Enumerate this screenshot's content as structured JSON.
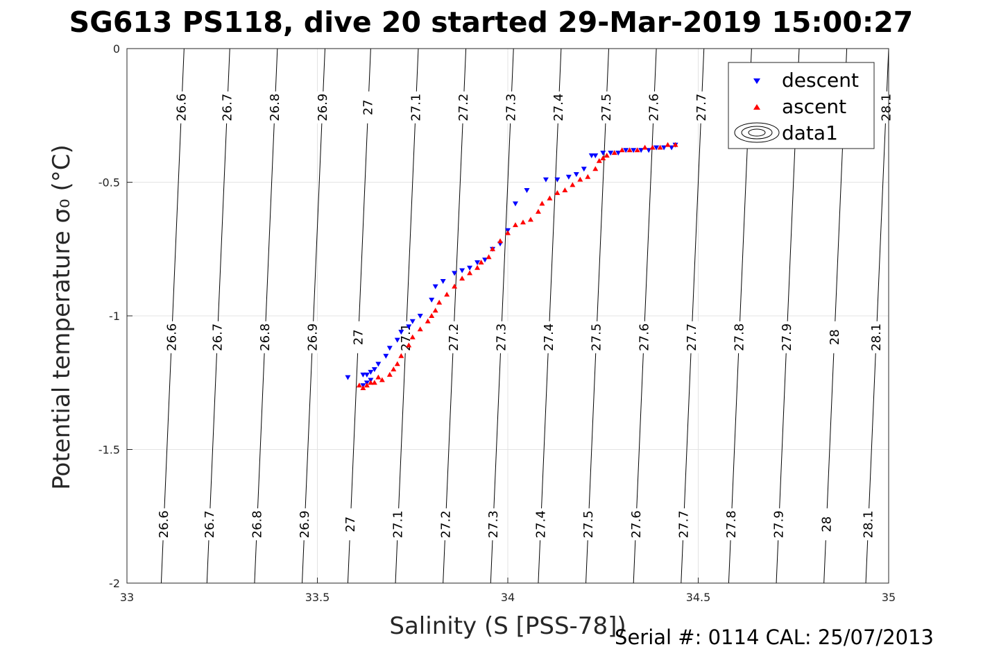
{
  "chart_data": {
    "type": "scatter",
    "title": "SG613 PS118, dive 20 started 29-Mar-2019 15:00:27",
    "xlabel": "Salinity (S [PSS-78])",
    "ylabel": "Potential temperature σ₀ (°C)",
    "xlim": [
      33,
      35
    ],
    "ylim": [
      -2,
      0
    ],
    "xticks": [
      "33",
      "33.5",
      "34",
      "34.5",
      "35"
    ],
    "yticks": [
      "0",
      "-0.5",
      "-1",
      "-1.5",
      "-2"
    ],
    "grid": true,
    "legend_position": "top-right",
    "footer": "Serial #: 0114  CAL: 25/07/2013",
    "contours": {
      "slope_dx_per_dy": 0.03,
      "levels": [
        {
          "label": "26.6",
          "x_at_top": 33.15
        },
        {
          "label": "26.7",
          "x_at_top": 33.27
        },
        {
          "label": "26.8",
          "x_at_top": 33.395
        },
        {
          "label": "26.9",
          "x_at_top": 33.52
        },
        {
          "label": "27",
          "x_at_top": 33.64
        },
        {
          "label": "27.1",
          "x_at_top": 33.765
        },
        {
          "label": "27.2",
          "x_at_top": 33.89
        },
        {
          "label": "27.3",
          "x_at_top": 34.015
        },
        {
          "label": "27.4",
          "x_at_top": 34.14
        },
        {
          "label": "27.5",
          "x_at_top": 34.265
        },
        {
          "label": "27.6",
          "x_at_top": 34.39
        },
        {
          "label": "27.7",
          "x_at_top": 34.515
        },
        {
          "label": "27.8",
          "x_at_top": 34.64
        },
        {
          "label": "27.9",
          "x_at_top": 34.765
        },
        {
          "label": "28",
          "x_at_top": 34.89
        },
        {
          "label": "28.1",
          "x_at_top": 35.0
        }
      ],
      "label_rows": [
        {
          "y": -0.22,
          "labels": [
            "26.6",
            "26.7",
            "26.8",
            "26.9",
            "27",
            "27.1",
            "27.2",
            "27.3",
            "27.4",
            "27.5",
            "27.6",
            "27.7",
            "28.1"
          ]
        },
        {
          "y": -1.08,
          "labels": [
            "26.6",
            "26.7",
            "26.8",
            "26.9",
            "27",
            "27.1",
            "27.2",
            "27.3",
            "27.4",
            "27.5",
            "27.6",
            "27.7",
            "27.8",
            "27.9",
            "28",
            "28.1"
          ]
        },
        {
          "y": -1.78,
          "labels": [
            "26.6",
            "26.7",
            "26.8",
            "26.9",
            "27",
            "27.1",
            "27.2",
            "27.3",
            "27.4",
            "27.5",
            "27.6",
            "27.7",
            "27.8",
            "27.9",
            "28",
            "28.1"
          ]
        }
      ]
    },
    "series": [
      {
        "name": "descent",
        "marker": "triangle-down",
        "color": "#0000ff",
        "points": [
          [
            34.44,
            -0.36
          ],
          [
            34.43,
            -0.37
          ],
          [
            34.41,
            -0.37
          ],
          [
            34.39,
            -0.37
          ],
          [
            34.37,
            -0.38
          ],
          [
            34.35,
            -0.38
          ],
          [
            34.33,
            -0.38
          ],
          [
            34.31,
            -0.38
          ],
          [
            34.29,
            -0.39
          ],
          [
            34.27,
            -0.39
          ],
          [
            34.25,
            -0.39
          ],
          [
            34.23,
            -0.4
          ],
          [
            34.22,
            -0.4
          ],
          [
            34.2,
            -0.45
          ],
          [
            34.18,
            -0.47
          ],
          [
            34.16,
            -0.48
          ],
          [
            34.13,
            -0.49
          ],
          [
            34.1,
            -0.49
          ],
          [
            34.05,
            -0.53
          ],
          [
            34.02,
            -0.58
          ],
          [
            34.0,
            -0.68
          ],
          [
            33.98,
            -0.73
          ],
          [
            33.96,
            -0.75
          ],
          [
            33.94,
            -0.79
          ],
          [
            33.92,
            -0.8
          ],
          [
            33.9,
            -0.82
          ],
          [
            33.88,
            -0.83
          ],
          [
            33.86,
            -0.84
          ],
          [
            33.83,
            -0.87
          ],
          [
            33.81,
            -0.89
          ],
          [
            33.8,
            -0.94
          ],
          [
            33.77,
            -1.0
          ],
          [
            33.75,
            -1.02
          ],
          [
            33.74,
            -1.04
          ],
          [
            33.72,
            -1.06
          ],
          [
            33.71,
            -1.09
          ],
          [
            33.69,
            -1.12
          ],
          [
            33.68,
            -1.15
          ],
          [
            33.66,
            -1.18
          ],
          [
            33.65,
            -1.2
          ],
          [
            33.64,
            -1.21
          ],
          [
            33.63,
            -1.22
          ],
          [
            33.62,
            -1.22
          ],
          [
            33.64,
            -1.24
          ],
          [
            33.63,
            -1.25
          ],
          [
            33.62,
            -1.26
          ],
          [
            33.58,
            -1.23
          ]
        ]
      },
      {
        "name": "ascent",
        "marker": "triangle-up",
        "color": "#ff0000",
        "points": [
          [
            34.44,
            -0.36
          ],
          [
            34.42,
            -0.36
          ],
          [
            34.4,
            -0.37
          ],
          [
            34.38,
            -0.37
          ],
          [
            34.36,
            -0.37
          ],
          [
            34.34,
            -0.38
          ],
          [
            34.32,
            -0.38
          ],
          [
            34.3,
            -0.38
          ],
          [
            34.28,
            -0.39
          ],
          [
            34.26,
            -0.4
          ],
          [
            34.25,
            -0.41
          ],
          [
            34.24,
            -0.42
          ],
          [
            34.23,
            -0.45
          ],
          [
            34.21,
            -0.48
          ],
          [
            34.19,
            -0.49
          ],
          [
            34.17,
            -0.51
          ],
          [
            34.15,
            -0.53
          ],
          [
            34.13,
            -0.54
          ],
          [
            34.11,
            -0.56
          ],
          [
            34.09,
            -0.58
          ],
          [
            34.08,
            -0.61
          ],
          [
            34.06,
            -0.64
          ],
          [
            34.04,
            -0.65
          ],
          [
            34.02,
            -0.66
          ],
          [
            34.0,
            -0.69
          ],
          [
            33.98,
            -0.72
          ],
          [
            33.96,
            -0.75
          ],
          [
            33.95,
            -0.78
          ],
          [
            33.93,
            -0.8
          ],
          [
            33.92,
            -0.82
          ],
          [
            33.9,
            -0.84
          ],
          [
            33.88,
            -0.86
          ],
          [
            33.86,
            -0.89
          ],
          [
            33.84,
            -0.92
          ],
          [
            33.82,
            -0.95
          ],
          [
            33.81,
            -0.98
          ],
          [
            33.8,
            -1.0
          ],
          [
            33.79,
            -1.02
          ],
          [
            33.77,
            -1.05
          ],
          [
            33.75,
            -1.08
          ],
          [
            33.74,
            -1.11
          ],
          [
            33.72,
            -1.15
          ],
          [
            33.71,
            -1.18
          ],
          [
            33.7,
            -1.2
          ],
          [
            33.69,
            -1.22
          ],
          [
            33.67,
            -1.24
          ],
          [
            33.65,
            -1.25
          ],
          [
            33.63,
            -1.26
          ],
          [
            33.61,
            -1.26
          ],
          [
            33.62,
            -1.27
          ],
          [
            33.64,
            -1.25
          ],
          [
            33.66,
            -1.23
          ]
        ]
      },
      {
        "name": "data1",
        "marker": "contour"
      }
    ]
  }
}
